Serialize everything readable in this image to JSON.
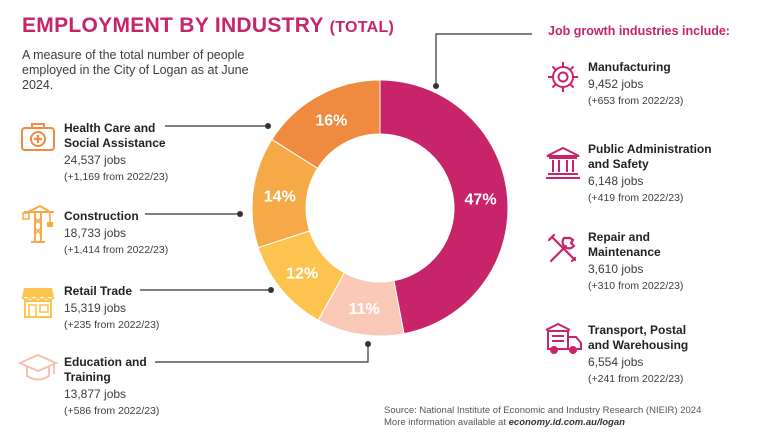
{
  "title": {
    "main": "EMPLOYMENT BY INDUSTRY",
    "sub": "(TOTAL)"
  },
  "description": "A measure of the total number of people employed in the City of Logan as at June 2024.",
  "left_industries": [
    {
      "name_line1": "Health Care and",
      "name_line2": "Social Assistance",
      "jobs": "24,537 jobs",
      "growth": "(+1,169 from 2022/23)",
      "icon": "first-aid-kit-icon",
      "color": "#f08a3e"
    },
    {
      "name_line1": "Construction",
      "name_line2": "",
      "jobs": "18,733 jobs",
      "growth": "(+1,414 from 2022/23)",
      "icon": "crane-icon",
      "color": "#f5a947"
    },
    {
      "name_line1": "Retail Trade",
      "name_line2": "",
      "jobs": "15,319 jobs",
      "growth": "(+235 from 2022/23)",
      "icon": "storefront-icon",
      "color": "#fdc34f"
    },
    {
      "name_line1": "Education and",
      "name_line2": "Training",
      "jobs": "13,877 jobs",
      "growth": "(+586 from 2022/23)",
      "icon": "graduation-cap-icon",
      "color": "#f7c1b0"
    }
  ],
  "growth_heading": "Job growth industries include:",
  "right_industries": [
    {
      "name_line1": "Manufacturing",
      "name_line2": "",
      "jobs": "9,452 jobs",
      "growth": "(+653 from 2022/23)",
      "icon": "gear-icon",
      "color": "#c8246a"
    },
    {
      "name_line1": "Public Administration",
      "name_line2": "and Safety",
      "jobs": "6,148 jobs",
      "growth": "(+419 from 2022/23)",
      "icon": "government-building-icon",
      "color": "#c8246a"
    },
    {
      "name_line1": "Repair and",
      "name_line2": "Maintenance",
      "jobs": "3,610 jobs",
      "growth": "(+310 from 2022/23)",
      "icon": "tools-icon",
      "color": "#c8246a"
    },
    {
      "name_line1": "Transport, Postal",
      "name_line2": "and Warehousing",
      "jobs": "6,554 jobs",
      "growth": "(+241 from 2022/23)",
      "icon": "truck-icon",
      "color": "#c8246a"
    }
  ],
  "chart_data": {
    "type": "pie",
    "style": "donut",
    "slices": [
      {
        "label": "47%",
        "value": 47,
        "color": "#c8246a"
      },
      {
        "label": "11%",
        "value": 11,
        "color": "#f9c8b7"
      },
      {
        "label": "12%",
        "value": 12,
        "color": "#fdc34f"
      },
      {
        "label": "14%",
        "value": 14,
        "color": "#f5a947"
      },
      {
        "label": "16%",
        "value": 16,
        "color": "#f08a3e"
      }
    ]
  },
  "source": {
    "line1": "Source: National Institute of Economic and Industry Research (NIEIR) 2024",
    "line2_prefix": "More information available at ",
    "line2_link": "economy.id.com.au/logan"
  }
}
